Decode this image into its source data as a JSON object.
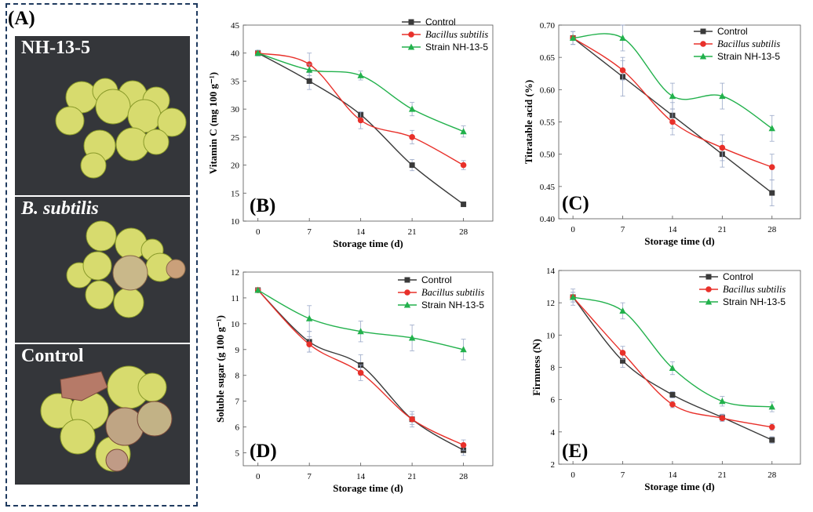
{
  "panel_a": {
    "label": "(A)",
    "photos": [
      {
        "label": "NH-13-5",
        "italic": false
      },
      {
        "label": "B. subtilis",
        "italic": true
      },
      {
        "label": "Control",
        "italic": false
      }
    ]
  },
  "colors": {
    "control": "#3a3a3a",
    "bacillus": "#e8302a",
    "strain": "#22b14c",
    "error": "#9aa8c8"
  },
  "chart_data": [
    {
      "id": "B",
      "type": "line",
      "label": "(B)",
      "xlabel": "Storage time (d)",
      "ylabel": "Vitamin C (mg 100 g⁻¹)",
      "x": [
        0,
        7,
        14,
        21,
        28
      ],
      "xticks": [
        "0",
        "7",
        "14",
        "21",
        "28"
      ],
      "ylim": [
        10,
        45
      ],
      "yticks": [
        10,
        15,
        20,
        25,
        30,
        35,
        40,
        45
      ],
      "legend_position": "top-right",
      "series": [
        {
          "name": "Control",
          "values": [
            40,
            35,
            29,
            20,
            13
          ],
          "errors": [
            0.5,
            1.5,
            0.5,
            1.0,
            0.4
          ]
        },
        {
          "name": "Bacillus subtilis",
          "values": [
            40,
            38,
            28,
            25,
            20
          ],
          "errors": [
            0.5,
            2.0,
            1.5,
            1.2,
            0.8
          ]
        },
        {
          "name": "Strain NH-13-5",
          "values": [
            40,
            37,
            36,
            30,
            26
          ],
          "errors": [
            0.5,
            1.0,
            0.8,
            1.2,
            1.0
          ]
        }
      ]
    },
    {
      "id": "C",
      "type": "line",
      "label": "(C)",
      "xlabel": "Storage time (d)",
      "ylabel": "Titratable acid (%)",
      "x": [
        0,
        7,
        14,
        21,
        28
      ],
      "xticks": [
        "0",
        "7",
        "14",
        "21",
        "28"
      ],
      "ylim": [
        0.4,
        0.7
      ],
      "yticks": [
        "0.40",
        "0.45",
        "0.50",
        "0.55",
        "0.60",
        "0.65",
        "0.70"
      ],
      "legend_position": "top-right",
      "series": [
        {
          "name": "Control",
          "values": [
            0.68,
            0.62,
            0.56,
            0.5,
            0.44
          ],
          "errors": [
            0.01,
            0.03,
            0.02,
            0.02,
            0.02
          ]
        },
        {
          "name": "Bacillus subtilis",
          "values": [
            0.68,
            0.63,
            0.55,
            0.51,
            0.48
          ],
          "errors": [
            0.01,
            0.015,
            0.02,
            0.02,
            0.02
          ]
        },
        {
          "name": "Strain NH-13-5",
          "values": [
            0.68,
            0.68,
            0.59,
            0.59,
            0.54
          ],
          "errors": [
            0.01,
            0.02,
            0.02,
            0.02,
            0.02
          ]
        }
      ]
    },
    {
      "id": "D",
      "type": "line",
      "label": "(D)",
      "xlabel": "Storage time (d)",
      "ylabel": "Soluble sugar (g 100 g⁻¹)",
      "x": [
        0,
        7,
        14,
        21,
        28
      ],
      "xticks": [
        "0",
        "7",
        "14",
        "21",
        "28"
      ],
      "ylim": [
        4.5,
        12
      ],
      "yticks": [
        5,
        6,
        7,
        8,
        9,
        10,
        11,
        12
      ],
      "legend_position": "top-right",
      "series": [
        {
          "name": "Control",
          "values": [
            11.3,
            9.3,
            8.4,
            6.3,
            5.1
          ],
          "errors": [
            0.05,
            0.4,
            0.4,
            0.3,
            0.2
          ]
        },
        {
          "name": "Bacillus subtilis",
          "values": [
            11.3,
            9.2,
            8.1,
            6.3,
            5.3
          ],
          "errors": [
            0.05,
            0.3,
            0.3,
            0.2,
            0.2
          ]
        },
        {
          "name": "Strain NH-13-5",
          "values": [
            11.3,
            10.2,
            9.7,
            9.45,
            9.0
          ],
          "errors": [
            0.05,
            0.5,
            0.4,
            0.5,
            0.4
          ]
        }
      ]
    },
    {
      "id": "E",
      "type": "line",
      "label": "(E)",
      "xlabel": "Storage time (d)",
      "ylabel": "Firmness (N)",
      "x": [
        0,
        7,
        14,
        21,
        28
      ],
      "xticks": [
        "0",
        "7",
        "14",
        "21",
        "28"
      ],
      "ylim": [
        2,
        14
      ],
      "yticks": [
        2,
        4,
        6,
        8,
        10,
        12,
        14
      ],
      "legend_position": "top-right",
      "series": [
        {
          "name": "Control",
          "values": [
            12.35,
            8.4,
            6.3,
            4.9,
            3.5
          ],
          "errors": [
            0.3,
            0.4,
            0.2,
            0.2,
            0.2
          ]
        },
        {
          "name": "Bacillus subtilis",
          "values": [
            12.35,
            8.9,
            5.7,
            4.85,
            4.3
          ],
          "errors": [
            0.5,
            0.4,
            0.2,
            0.2,
            0.2
          ]
        },
        {
          "name": "Strain NH-13-5",
          "values": [
            12.35,
            11.5,
            7.95,
            5.9,
            5.55
          ],
          "errors": [
            0.3,
            0.5,
            0.4,
            0.3,
            0.3
          ]
        }
      ]
    }
  ]
}
